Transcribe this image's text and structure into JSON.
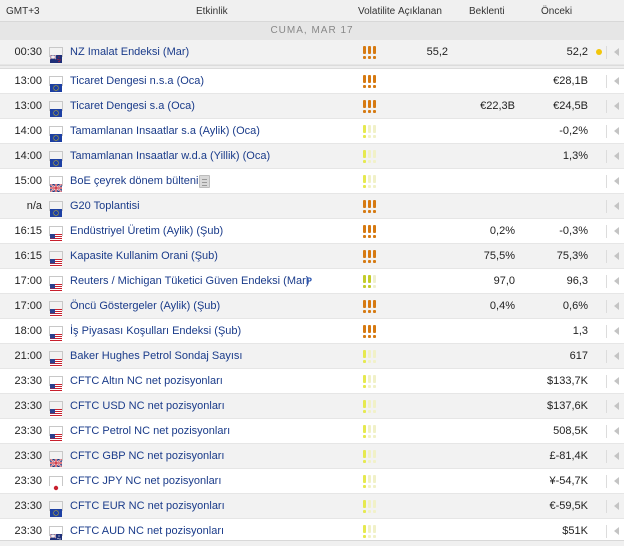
{
  "header": {
    "time": "GMT+3",
    "event": "Etkinlik",
    "volatility": "Volatilite",
    "actual": "Açıklanan",
    "forecast": "Beklenti",
    "previous": "Önceki"
  },
  "day_label": "CUMA, MAR 17",
  "pinned": {
    "time": "00:30",
    "flag": "new-zealand-flag",
    "event": "NZ Imalat Endeksi (Mar)",
    "volatility": "high",
    "actual": "55,2",
    "forecast": "",
    "previous": "52,2"
  },
  "events": [
    {
      "time": "13:00",
      "flag": "eu-flag",
      "event": "Ticaret Dengesi n.s.a (Oca)",
      "volatility": "high",
      "actual": "",
      "forecast": "",
      "previous": "€28,1B"
    },
    {
      "time": "13:00",
      "flag": "eu-flag",
      "event": "Ticaret Dengesi s.a (Oca)",
      "volatility": "high",
      "actual": "",
      "forecast": "€22,3B",
      "previous": "€24,5B"
    },
    {
      "time": "14:00",
      "flag": "eu-flag",
      "event": "Tamamlanan Insaatlar s.a (Aylik) (Oca)",
      "volatility": "low",
      "actual": "",
      "forecast": "",
      "previous": "-0,2%"
    },
    {
      "time": "14:00",
      "flag": "eu-flag",
      "event": "Tamamlanan Insaatlar w.d.a (Yillik) (Oca)",
      "volatility": "low",
      "actual": "",
      "forecast": "",
      "previous": "1,3%"
    },
    {
      "time": "15:00",
      "flag": "uk-flag",
      "event": "BoE çeyrek dönem bülteni",
      "volatility": "low",
      "actual": "",
      "forecast": "",
      "previous": "",
      "note": true
    },
    {
      "time": "n/a",
      "flag": "eu-flag",
      "event": "G20 Toplantisi",
      "volatility": "high",
      "actual": "",
      "forecast": "",
      "previous": ""
    },
    {
      "time": "16:15",
      "flag": "us-flag",
      "event": "Endüstriyel Üretim (Aylik) (Şub)",
      "volatility": "high",
      "actual": "",
      "forecast": "0,2%",
      "previous": "-0,3%"
    },
    {
      "time": "16:15",
      "flag": "us-flag",
      "event": "Kapasite Kullanim Orani (Şub)",
      "volatility": "high",
      "actual": "",
      "forecast": "75,5%",
      "previous": "75,3%"
    },
    {
      "time": "17:00",
      "flag": "us-flag",
      "event": "Reuters / Michigan Tüketici Güven Endeksi (Mar)",
      "volatility": "medium",
      "actual": "",
      "forecast": "97,0",
      "previous": "96,3",
      "prelim": "P"
    },
    {
      "time": "17:00",
      "flag": "us-flag",
      "event": "Öncü Göstergeler (Aylik) (Şub)",
      "volatility": "high",
      "actual": "",
      "forecast": "0,4%",
      "previous": "0,6%"
    },
    {
      "time": "18:00",
      "flag": "us-flag",
      "event": "İş Piyasası Koşulları Endeksi (Şub)",
      "volatility": "high",
      "actual": "",
      "forecast": "",
      "previous": "1,3"
    },
    {
      "time": "21:00",
      "flag": "us-flag",
      "event": "Baker Hughes Petrol Sondaj Sayısı",
      "volatility": "low",
      "actual": "",
      "forecast": "",
      "previous": "617"
    },
    {
      "time": "23:30",
      "flag": "us-flag",
      "event": "CFTC Altın NC net pozisyonları",
      "volatility": "low",
      "actual": "",
      "forecast": "",
      "previous": "$133,7K"
    },
    {
      "time": "23:30",
      "flag": "us-flag",
      "event": "CFTC USD NC net pozisyonları",
      "volatility": "low",
      "actual": "",
      "forecast": "",
      "previous": "$137,6K"
    },
    {
      "time": "23:30",
      "flag": "us-flag",
      "event": "CFTC Petrol NC net pozisyonları",
      "volatility": "low",
      "actual": "",
      "forecast": "",
      "previous": "508,5K"
    },
    {
      "time": "23:30",
      "flag": "uk-flag",
      "event": "CFTC GBP NC net pozisyonları",
      "volatility": "low",
      "actual": "",
      "forecast": "",
      "previous": "£-81,4K"
    },
    {
      "time": "23:30",
      "flag": "japan-flag",
      "event": "CFTC JPY NC net pozisyonları",
      "volatility": "low",
      "actual": "",
      "forecast": "",
      "previous": "¥-54,7K"
    },
    {
      "time": "23:30",
      "flag": "eu-flag",
      "event": "CFTC EUR NC net pozisyonları",
      "volatility": "low",
      "actual": "",
      "forecast": "",
      "previous": "€-59,5K"
    },
    {
      "time": "23:30",
      "flag": "australia-flag",
      "event": "CFTC AUD NC net pozisyonları",
      "volatility": "low",
      "actual": "",
      "forecast": "",
      "previous": "$51K"
    }
  ],
  "colors": {
    "event_link": "#1a3b8a",
    "volatility_high": "#d67a12",
    "volatility_medium": "#c3cc2a",
    "volatility_low": "#e6e94f",
    "prelim_badge": "#2b55b0",
    "status_dot": "#f2c60a"
  }
}
